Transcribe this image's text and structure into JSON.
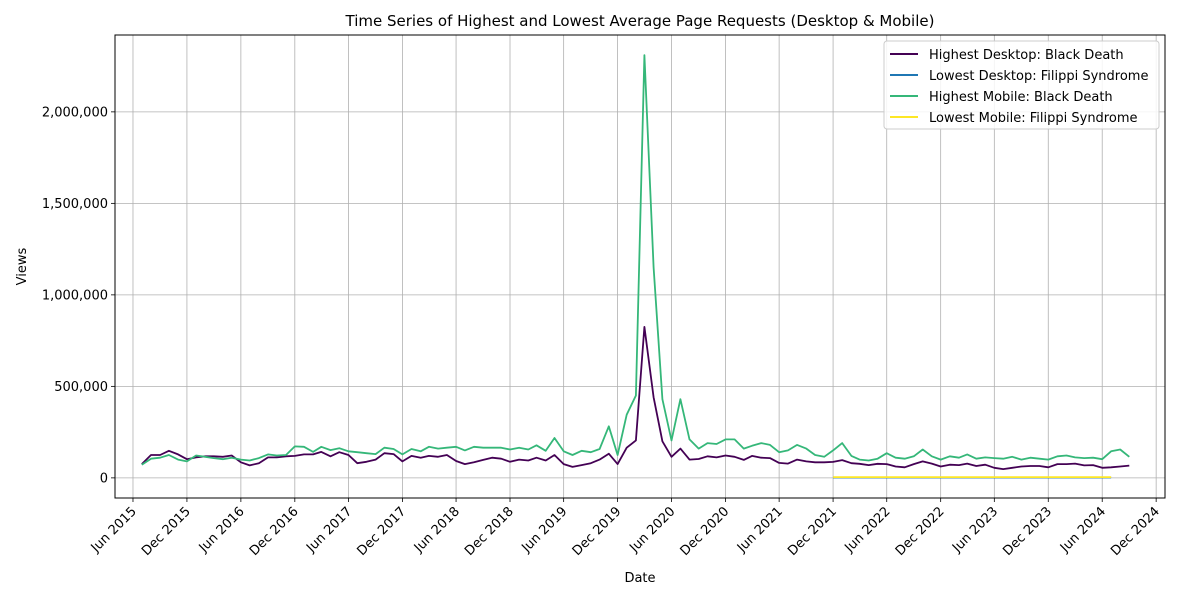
{
  "chart_data": {
    "type": "line",
    "title": "Time Series of Highest and Lowest Average Page Requests (Desktop & Mobile)",
    "xlabel": "Date",
    "ylabel": "Views",
    "x_axis_type": "date",
    "xlim": [
      "2015-04-01",
      "2024-12-31"
    ],
    "ylim": [
      -110000,
      2420000
    ],
    "x_ticks": [
      {
        "date": "2015-06-01",
        "label": "Jun 2015"
      },
      {
        "date": "2015-12-01",
        "label": "Dec 2015"
      },
      {
        "date": "2016-06-01",
        "label": "Jun 2016"
      },
      {
        "date": "2016-12-01",
        "label": "Dec 2016"
      },
      {
        "date": "2017-06-01",
        "label": "Jun 2017"
      },
      {
        "date": "2017-12-01",
        "label": "Dec 2017"
      },
      {
        "date": "2018-06-01",
        "label": "Jun 2018"
      },
      {
        "date": "2018-12-01",
        "label": "Dec 2018"
      },
      {
        "date": "2019-06-01",
        "label": "Jun 2019"
      },
      {
        "date": "2019-12-01",
        "label": "Dec 2019"
      },
      {
        "date": "2020-06-01",
        "label": "Jun 2020"
      },
      {
        "date": "2020-12-01",
        "label": "Dec 2020"
      },
      {
        "date": "2021-06-01",
        "label": "Jun 2021"
      },
      {
        "date": "2021-12-01",
        "label": "Dec 2021"
      },
      {
        "date": "2022-06-01",
        "label": "Jun 2022"
      },
      {
        "date": "2022-12-01",
        "label": "Dec 2022"
      },
      {
        "date": "2023-06-01",
        "label": "Jun 2023"
      },
      {
        "date": "2023-12-01",
        "label": "Dec 2023"
      },
      {
        "date": "2024-06-01",
        "label": "Jun 2024"
      },
      {
        "date": "2024-12-01",
        "label": "Dec 2024"
      }
    ],
    "y_ticks": [
      {
        "value": 0,
        "label": "0"
      },
      {
        "value": 500000,
        "label": "500,000"
      },
      {
        "value": 1000000,
        "label": "1,000,000"
      },
      {
        "value": 1500000,
        "label": "1,500,000"
      },
      {
        "value": 2000000,
        "label": "2,000,000"
      }
    ],
    "grid": true,
    "legend_position": "top-right",
    "series": [
      {
        "name": "Highest Desktop: Black Death",
        "color": "#440154",
        "start": "2015-07",
        "values": [
          75000,
          125000,
          125000,
          148000,
          128000,
          102000,
          112000,
          118000,
          118000,
          115000,
          122000,
          85000,
          68000,
          80000,
          112000,
          112000,
          118000,
          120000,
          128000,
          128000,
          142000,
          118000,
          140000,
          125000,
          80000,
          88000,
          100000,
          135000,
          130000,
          90000,
          120000,
          110000,
          120000,
          115000,
          125000,
          92000,
          75000,
          85000,
          98000,
          110000,
          105000,
          88000,
          100000,
          95000,
          110000,
          95000,
          125000,
          75000,
          60000,
          70000,
          80000,
          100000,
          132000,
          75000,
          165000,
          205000,
          825000,
          440000,
          200000,
          115000,
          160000,
          100000,
          103000,
          118000,
          112000,
          122000,
          115000,
          98000,
          120000,
          110000,
          108000,
          82000,
          78000,
          100000,
          90000,
          85000,
          85000,
          87000,
          97000,
          80000,
          77000,
          70000,
          77000,
          75000,
          62000,
          58000,
          75000,
          90000,
          78000,
          62000,
          72000,
          70000,
          78000,
          65000,
          72000,
          55000,
          48000,
          55000,
          62000,
          65000,
          65000,
          58000,
          75000,
          75000,
          78000,
          68000,
          70000,
          55000,
          58000,
          62000,
          67000
        ]
      },
      {
        "name": "Lowest Desktop: Filippi Syndrome",
        "color": "#1f77b4",
        "start": "2021-12",
        "values": [
          2000,
          2000,
          2000,
          2000,
          2000,
          2000,
          2000,
          2000,
          2000,
          2000,
          2000,
          2000,
          2000,
          2000,
          2000,
          2000,
          2000,
          2000,
          2000,
          2000,
          2000,
          2000,
          2000,
          2000,
          2000,
          2000,
          2000,
          2000,
          2000,
          2000,
          2000,
          2000
        ]
      },
      {
        "name": "Highest Mobile: Black Death",
        "color": "#35b779",
        "start": "2015-07",
        "values": [
          72000,
          105000,
          110000,
          125000,
          100000,
          90000,
          122000,
          115000,
          108000,
          102000,
          110000,
          100000,
          95000,
          108000,
          128000,
          122000,
          125000,
          172000,
          170000,
          142000,
          170000,
          152000,
          162000,
          145000,
          140000,
          135000,
          130000,
          165000,
          158000,
          128000,
          158000,
          145000,
          170000,
          160000,
          165000,
          170000,
          150000,
          170000,
          165000,
          165000,
          165000,
          155000,
          165000,
          155000,
          178000,
          148000,
          218000,
          145000,
          125000,
          148000,
          140000,
          158000,
          282000,
          125000,
          345000,
          450000,
          2310000,
          1150000,
          430000,
          205000,
          430000,
          210000,
          160000,
          190000,
          185000,
          210000,
          210000,
          160000,
          175000,
          190000,
          180000,
          140000,
          150000,
          180000,
          160000,
          125000,
          115000,
          150000,
          190000,
          120000,
          100000,
          95000,
          105000,
          135000,
          110000,
          105000,
          118000,
          155000,
          118000,
          100000,
          118000,
          110000,
          128000,
          105000,
          112000,
          108000,
          105000,
          115000,
          100000,
          110000,
          105000,
          100000,
          118000,
          122000,
          112000,
          108000,
          110000,
          102000,
          145000,
          155000,
          115000
        ]
      },
      {
        "name": "Lowest Mobile: Filippi Syndrome",
        "color": "#fde725",
        "start": "2021-12",
        "values": [
          4000,
          4000,
          4000,
          4000,
          4000,
          4000,
          4000,
          4000,
          4000,
          4000,
          4000,
          4000,
          4000,
          4000,
          4000,
          4000,
          4000,
          4000,
          4000,
          4000,
          4000,
          4000,
          4000,
          4000,
          4000,
          4000,
          4000,
          4000,
          4000,
          4000,
          4000,
          4000
        ]
      }
    ]
  }
}
